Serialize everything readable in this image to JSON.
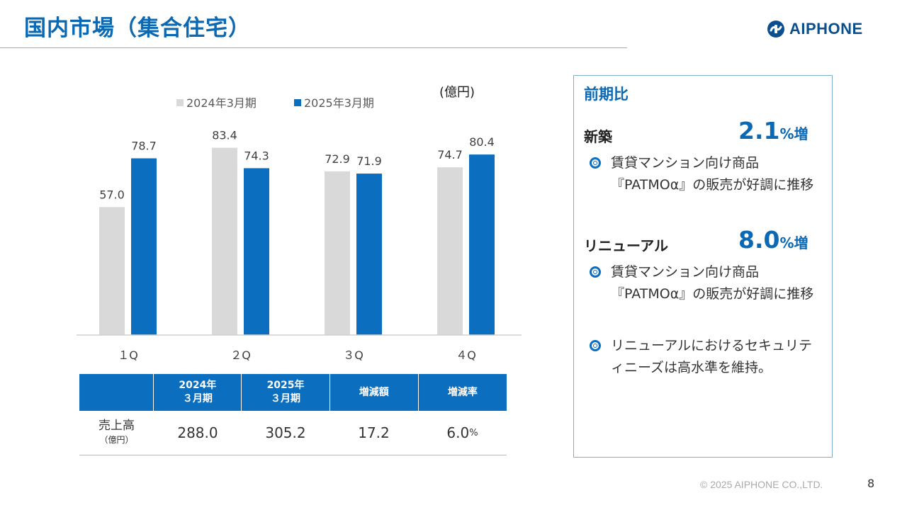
{
  "page_title": "国内市場（集合住宅）",
  "logo_text": "AIPHONE",
  "unit_label": "(億円)",
  "colors": {
    "series_2024": "#d9d9d9",
    "series_2025": "#0b6ebf",
    "accent": "#0b68b3"
  },
  "chart_data": {
    "type": "bar",
    "categories": [
      "１Q",
      "２Q",
      "３Q",
      "４Q"
    ],
    "series": [
      {
        "name": "2024年3月期",
        "values": [
          57.0,
          83.4,
          72.9,
          74.7
        ]
      },
      {
        "name": "2025年3月期",
        "values": [
          78.7,
          74.3,
          71.9,
          80.4
        ]
      }
    ],
    "legend_position": "top",
    "ylim": [
      0,
      100
    ],
    "grid": false,
    "data_labels": true
  },
  "table": {
    "headers": [
      "",
      "2024年\n３月期",
      "2025年\n３月期",
      "増減額",
      "増減率"
    ],
    "row_label": "売上高",
    "row_sublabel": "（億円）",
    "values": [
      "288.0",
      "305.2",
      "17.2"
    ],
    "rate_value": "6.0",
    "rate_unit": "%"
  },
  "panel": {
    "title": "前期比",
    "new_build": {
      "label": "新築",
      "growth": "2.1",
      "growth_suffix": "%増",
      "bullets": [
        "賃貸マンション向け商品『PATMOα』の販売が好調に推移"
      ]
    },
    "renewal": {
      "label": "リニューアル",
      "growth": "8.0",
      "growth_suffix": "%増",
      "bullets": [
        "賃貸マンション向け商品『PATMOα』の販売が好調に推移",
        "リニューアルにおけるセキュリティニーズは高水準を維持。"
      ]
    }
  },
  "footer": {
    "copyright": "© 2025 AIPHONE CO.,LTD.",
    "page_number": "8"
  }
}
